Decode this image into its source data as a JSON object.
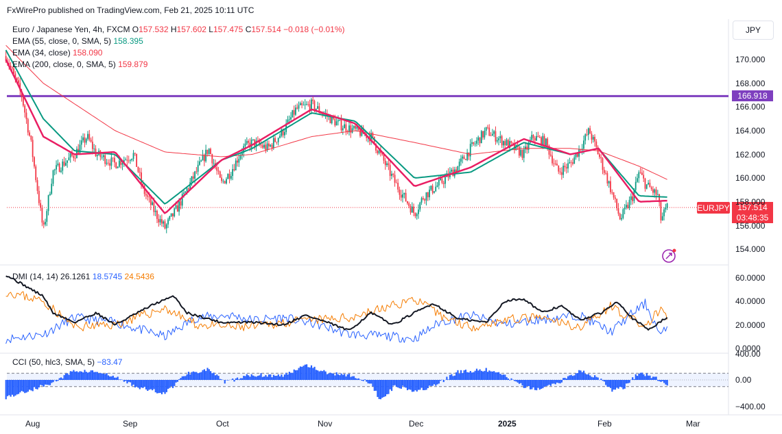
{
  "publisher": "FxWirePro published on TradingView.com, Feb 21, 2025 10:11 UTC",
  "currency": "JPY",
  "instrument": {
    "name": "Euro / Japanese Yen, 4h, FXCM",
    "o_label": "O",
    "o": "157.532",
    "h_label": "H",
    "h": "157.602",
    "l_label": "L",
    "l": "157.475",
    "c_label": "C",
    "c": "157.514",
    "change": "−0.018 (−0.01%)"
  },
  "indicators": {
    "ema55": {
      "label": "EMA (55, close, 0, SMA, 5)",
      "value": "158.395",
      "color": "#089981"
    },
    "ema34": {
      "label": "EMA (34, close)",
      "value": "158.090",
      "color": "#f23645"
    },
    "ema200": {
      "label": "EMA (200, close, 0, SMA, 5)",
      "value": "159.879",
      "color": "#f23645"
    },
    "dmi": {
      "label": "DMI (14, 14)",
      "adx": "26.1261",
      "plus": "18.5745",
      "minus": "24.5436",
      "adx_color": "#131722",
      "plus_color": "#2962ff",
      "minus_color": "#f57c00"
    },
    "cci": {
      "label": "CCI (50, hlc3, SMA, 5)",
      "value": "−83.47",
      "color": "#2962ff"
    }
  },
  "price_tags": {
    "resistance": "166.918",
    "symbol": "EURJPY",
    "last": "157.514",
    "countdown": "03:48:35"
  },
  "chart_data": [
    {
      "type": "candlestick",
      "title": "Euro / Japanese Yen, 4h, FXCM",
      "y_ticks": [
        "170.000",
        "168.000",
        "166.000",
        "164.000",
        "162.000",
        "160.000",
        "158.000",
        "156.000",
        "154.000"
      ],
      "ylim": [
        152.8,
        172.2
      ],
      "x_ticks": [
        "Aug",
        "Sep",
        "Oct",
        "Nov",
        "Dec",
        "2025",
        "Feb",
        "Mar"
      ],
      "horizontal_lines": [
        {
          "value": 166.918,
          "color": "#7e3fbf"
        }
      ],
      "last_price": 157.514,
      "price_path": [
        [
          "Jul 24",
          170.3
        ],
        [
          "Jul 29",
          167.0
        ],
        [
          "Aug 1",
          163.0
        ],
        [
          "Aug 5",
          155.5
        ],
        [
          "Aug 8",
          160.5
        ],
        [
          "Aug 15",
          162.0
        ],
        [
          "Aug 19",
          163.5
        ],
        [
          "Aug 22",
          162.0
        ],
        [
          "Aug 28",
          161.2
        ],
        [
          "Sep 3",
          162.0
        ],
        [
          "Sep 6",
          159.0
        ],
        [
          "Sep 10",
          157.0
        ],
        [
          "Sep 13",
          155.8
        ],
        [
          "Sep 17",
          157.5
        ],
        [
          "Sep 23",
          160.5
        ],
        [
          "Sep 27",
          162.5
        ],
        [
          "Oct 1",
          159.5
        ],
        [
          "Oct 4",
          160.5
        ],
        [
          "Oct 8",
          162.5
        ],
        [
          "Oct 11",
          163.0
        ],
        [
          "Oct 16",
          162.5
        ],
        [
          "Oct 21",
          164.0
        ],
        [
          "Oct 25",
          165.8
        ],
        [
          "Oct 30",
          166.2
        ],
        [
          "Nov 4",
          165.2
        ],
        [
          "Nov 8",
          164.5
        ],
        [
          "Nov 13",
          164.0
        ],
        [
          "Nov 18",
          163.5
        ],
        [
          "Nov 21",
          162.0
        ],
        [
          "Nov 26",
          159.5
        ],
        [
          "Dec 2",
          157.0
        ],
        [
          "Dec 5",
          158.5
        ],
        [
          "Dec 10",
          159.5
        ],
        [
          "Dec 16",
          161.0
        ],
        [
          "Dec 20",
          162.5
        ],
        [
          "Dec 25",
          164.0
        ],
        [
          "Dec 31",
          163.0
        ],
        [
          "Jan 6",
          162.0
        ],
        [
          "Jan 9",
          163.5
        ],
        [
          "Jan 13",
          163.0
        ],
        [
          "Jan 17",
          160.5
        ],
        [
          "Jan 21",
          161.2
        ],
        [
          "Jan 24",
          162.5
        ],
        [
          "Jan 27",
          164.0
        ],
        [
          "Jan 30",
          162.0
        ],
        [
          "Feb 3",
          159.0
        ],
        [
          "Feb 6",
          156.5
        ],
        [
          "Feb 10",
          158.5
        ],
        [
          "Feb 12",
          160.5
        ],
        [
          "Feb 14",
          159.5
        ],
        [
          "Feb 18",
          158.5
        ],
        [
          "Feb 19",
          156.5
        ],
        [
          "Feb 21",
          157.514
        ]
      ],
      "series": [
        {
          "name": "EMA (55, close, 0, SMA, 5)",
          "color": "#089981",
          "last": 158.395,
          "path": [
            [
              "Jul 24",
              170.8
            ],
            [
              "Aug 5",
              165.0
            ],
            [
              "Aug 15",
              162.3
            ],
            [
              "Aug 28",
              162.0
            ],
            [
              "Sep 13",
              157.8
            ],
            [
              "Oct 1",
              161.5
            ],
            [
              "Oct 11",
              162.5
            ],
            [
              "Oct 30",
              165.5
            ],
            [
              "Nov 13",
              164.8
            ],
            [
              "Dec 2",
              160.0
            ],
            [
              "Dec 20",
              160.5
            ],
            [
              "Jan 6",
              163.0
            ],
            [
              "Jan 21",
              162.0
            ],
            [
              "Jan 30",
              162.5
            ],
            [
              "Feb 12",
              158.5
            ],
            [
              "Feb 21",
              158.395
            ]
          ]
        },
        {
          "name": "EMA (34, close)",
          "color": "#f23645",
          "last": 158.09,
          "path": [
            [
              "Jul 24",
              170.0
            ],
            [
              "Aug 5",
              163.5
            ],
            [
              "Aug 15",
              162.0
            ],
            [
              "Aug 28",
              162.2
            ],
            [
              "Sep 13",
              157.0
            ],
            [
              "Oct 1",
              161.5
            ],
            [
              "Oct 11",
              162.8
            ],
            [
              "Oct 30",
              165.8
            ],
            [
              "Nov 13",
              164.6
            ],
            [
              "Dec 2",
              159.3
            ],
            [
              "Dec 20",
              160.9
            ],
            [
              "Jan 6",
              163.3
            ],
            [
              "Jan 21",
              162.0
            ],
            [
              "Jan 30",
              162.5
            ],
            [
              "Feb 12",
              158.0
            ],
            [
              "Feb 21",
              158.09
            ]
          ]
        },
        {
          "name": "EMA (200, close, 0, SMA, 5)",
          "color": "#f23645",
          "last": 159.879,
          "path": [
            [
              "Jul 24",
              171.2
            ],
            [
              "Aug 5",
              168.0
            ],
            [
              "Aug 28",
              164.0
            ],
            [
              "Sep 13",
              162.2
            ],
            [
              "Oct 1",
              161.8
            ],
            [
              "Oct 11",
              162.0
            ],
            [
              "Oct 30",
              163.5
            ],
            [
              "Nov 13",
              164.0
            ],
            [
              "Dec 2",
              163.0
            ],
            [
              "Dec 20",
              162.0
            ],
            [
              "Jan 6",
              162.5
            ],
            [
              "Jan 21",
              162.5
            ],
            [
              "Jan 30",
              162.3
            ],
            [
              "Feb 12",
              161.0
            ],
            [
              "Feb 21",
              159.879
            ]
          ]
        }
      ]
    },
    {
      "type": "line",
      "title": "DMI (14, 14)",
      "y_ticks": [
        "60.0000",
        "40.0000",
        "20.0000",
        "0.0000"
      ],
      "ylim": [
        0,
        62
      ],
      "series": [
        {
          "name": "ADX",
          "color": "#131722",
          "last": 26.1261,
          "path": [
            [
              "Jul 24",
              62
            ],
            [
              "Aug 1",
              50
            ],
            [
              "Aug 5",
              44
            ],
            [
              "Aug 8",
              30
            ],
            [
              "Aug 15",
              22
            ],
            [
              "Aug 22",
              30
            ],
            [
              "Aug 28",
              20
            ],
            [
              "Sep 10",
              38
            ],
            [
              "Sep 16",
              44
            ],
            [
              "Sep 20",
              30
            ],
            [
              "Oct 1",
              22
            ],
            [
              "Oct 11",
              22
            ],
            [
              "Oct 21",
              20
            ],
            [
              "Oct 28",
              28
            ],
            [
              "Nov 4",
              22
            ],
            [
              "Nov 11",
              15
            ],
            [
              "Nov 18",
              30
            ],
            [
              "Nov 25",
              20
            ],
            [
              "Dec 2",
              30
            ],
            [
              "Dec 8",
              38
            ],
            [
              "Dec 16",
              25
            ],
            [
              "Dec 25",
              22
            ],
            [
              "Dec 31",
              40
            ],
            [
              "Jan 6",
              42
            ],
            [
              "Jan 12",
              30
            ],
            [
              "Jan 18",
              36
            ],
            [
              "Jan 24",
              24
            ],
            [
              "Jan 31",
              30
            ],
            [
              "Feb 5",
              40
            ],
            [
              "Feb 10",
              25
            ],
            [
              "Feb 15",
              16
            ],
            [
              "Feb 21",
              26.1261
            ]
          ]
        },
        {
          "name": "+DI",
          "color": "#2962ff",
          "last": 18.5745,
          "path": [
            [
              "Jul 24",
              8
            ],
            [
              "Aug 5",
              12
            ],
            [
              "Aug 15",
              26
            ],
            [
              "Aug 28",
              22
            ],
            [
              "Sep 13",
              10
            ],
            [
              "Sep 23",
              26
            ],
            [
              "Oct 4",
              28
            ],
            [
              "Oct 11",
              24
            ],
            [
              "Oct 21",
              26
            ],
            [
              "Nov 1",
              20
            ],
            [
              "Nov 11",
              12
            ],
            [
              "Nov 25",
              10
            ],
            [
              "Dec 2",
              8
            ],
            [
              "Dec 10",
              22
            ],
            [
              "Dec 20",
              28
            ],
            [
              "Dec 31",
              20
            ],
            [
              "Jan 10",
              24
            ],
            [
              "Jan 24",
              28
            ],
            [
              "Feb 3",
              14
            ],
            [
              "Feb 10",
              30
            ],
            [
              "Feb 14",
              38
            ],
            [
              "Feb 19",
              10
            ],
            [
              "Feb 21",
              18.5745
            ]
          ]
        },
        {
          "name": "−DI",
          "color": "#f57c00",
          "last": 24.5436,
          "path": [
            [
              "Jul 24",
              48
            ],
            [
              "Aug 5",
              40
            ],
            [
              "Aug 15",
              18
            ],
            [
              "Aug 28",
              20
            ],
            [
              "Sep 13",
              34
            ],
            [
              "Sep 23",
              20
            ],
            [
              "Oct 4",
              18
            ],
            [
              "Oct 11",
              18
            ],
            [
              "Oct 21",
              22
            ],
            [
              "Nov 1",
              24
            ],
            [
              "Nov 11",
              26
            ],
            [
              "Nov 25",
              36
            ],
            [
              "Dec 2",
              42
            ],
            [
              "Dec 10",
              28
            ],
            [
              "Dec 20",
              18
            ],
            [
              "Dec 31",
              24
            ],
            [
              "Jan 10",
              26
            ],
            [
              "Jan 24",
              18
            ],
            [
              "Feb 3",
              36
            ],
            [
              "Feb 10",
              24
            ],
            [
              "Feb 14",
              18
            ],
            [
              "Feb 19",
              34
            ],
            [
              "Feb 21",
              24.5436
            ]
          ]
        }
      ]
    },
    {
      "type": "histogram",
      "title": "CCI (50, hlc3, SMA, 5)",
      "y_ticks": [
        "400.00",
        "0.00",
        "−400.00"
      ],
      "ylim": [
        -440,
        440
      ],
      "reference_band": [
        100,
        -100
      ],
      "series": [
        {
          "name": "CCI",
          "color": "#2962ff",
          "last": -83.47,
          "path": [
            [
              "Jul 24",
              -260
            ],
            [
              "Aug 1",
              -150
            ],
            [
              "Aug 8",
              -40
            ],
            [
              "Aug 15",
              140
            ],
            [
              "Aug 22",
              120
            ],
            [
              "Aug 28",
              40
            ],
            [
              "Sep 5",
              -120
            ],
            [
              "Sep 13",
              -200
            ],
            [
              "Sep 20",
              100
            ],
            [
              "Sep 27",
              160
            ],
            [
              "Oct 2",
              -40
            ],
            [
              "Oct 11",
              80
            ],
            [
              "Oct 21",
              60
            ],
            [
              "Oct 28",
              240
            ],
            [
              "Nov 4",
              100
            ],
            [
              "Nov 11",
              80
            ],
            [
              "Nov 18",
              -60
            ],
            [
              "Nov 21",
              -300
            ],
            [
              "Nov 26",
              -80
            ],
            [
              "Dec 2",
              -160
            ],
            [
              "Dec 8",
              -100
            ],
            [
              "Dec 16",
              120
            ],
            [
              "Dec 25",
              150
            ],
            [
              "Dec 31",
              60
            ],
            [
              "Jan 6",
              -100
            ],
            [
              "Jan 10",
              -150
            ],
            [
              "Jan 17",
              -40
            ],
            [
              "Jan 24",
              140
            ],
            [
              "Jan 30",
              30
            ],
            [
              "Feb 3",
              -150
            ],
            [
              "Feb 7",
              -120
            ],
            [
              "Feb 12",
              110
            ],
            [
              "Feb 17",
              40
            ],
            [
              "Feb 21",
              -83.47
            ]
          ]
        }
      ]
    }
  ]
}
